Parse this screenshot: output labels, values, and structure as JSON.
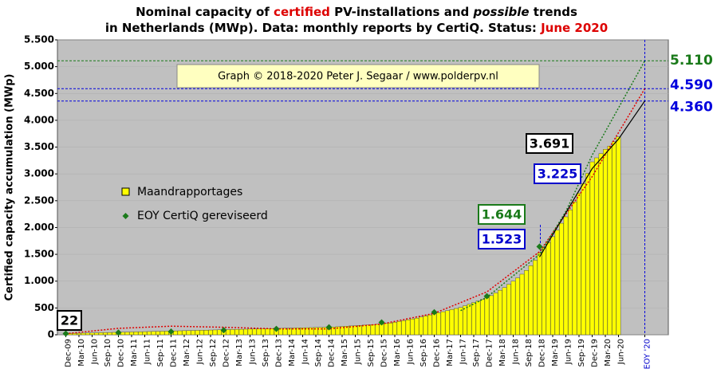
{
  "chart_data": {
    "type": "bar",
    "title_lines": [
      [
        {
          "text": "Nominal capacity of ",
          "color": "#000000"
        },
        {
          "text": "certified",
          "color": "#dd0000"
        },
        {
          "text": " PV-installations and ",
          "color": "#000000"
        },
        {
          "text": "possible",
          "color": "#000000",
          "italic": true
        },
        {
          "text": " trends",
          "color": "#000000"
        }
      ],
      [
        {
          "text": "in Netherlands (MWp). Data: monthly reports by CertiQ. Status: ",
          "color": "#000000"
        },
        {
          "text": "June 2020",
          "color": "#dd0000"
        }
      ]
    ],
    "ylabel": "Certified capacity accumulation (MWp)",
    "credit": "Graph © 2018-2020 Peter J. Segaar / www.polderpv.nl",
    "ylim": [
      0,
      5500
    ],
    "yticks": [
      0,
      500,
      {
        "value": 1000,
        "label": "1.000"
      },
      {
        "value": 1500,
        "label": "1.500"
      },
      {
        "value": 2000,
        "label": "2.000"
      },
      {
        "value": 2500,
        "label": "2.500"
      },
      {
        "value": 3000,
        "label": "3.000"
      },
      {
        "value": 3500,
        "label": "3.500"
      },
      {
        "value": 4000,
        "label": "4.000"
      },
      {
        "value": 4500,
        "label": "4.500"
      },
      {
        "value": 5000,
        "label": "5.000"
      },
      {
        "value": 5500,
        "label": "5.500"
      }
    ],
    "grid": true,
    "categories": [
      "Dec-09",
      null,
      null,
      "Mar-10",
      null,
      null,
      "Jun-10",
      null,
      null,
      "Sep-10",
      null,
      null,
      "Dec-10",
      null,
      null,
      "Mar-11",
      null,
      null,
      "Jun-11",
      null,
      null,
      "Sep-11",
      null,
      null,
      "Dec-11",
      null,
      null,
      "Mar-12",
      null,
      null,
      "Jun-12",
      null,
      null,
      "Sep-12",
      null,
      null,
      "Dec-12",
      null,
      null,
      "Mar-13",
      null,
      null,
      "Jun-13",
      null,
      null,
      "Sep-13",
      null,
      null,
      "Dec-13",
      null,
      null,
      "Mar-14",
      null,
      null,
      "Jun-14",
      null,
      null,
      "Sep-14",
      null,
      null,
      "Dec-14",
      null,
      null,
      "Mar-15",
      null,
      null,
      "Jun-15",
      null,
      null,
      "Sep-15",
      null,
      null,
      "Dec-15",
      null,
      null,
      "Mar-16",
      null,
      null,
      "Jun-16",
      null,
      null,
      "Sep-16",
      null,
      null,
      "Dec-16",
      null,
      null,
      "Mar-17",
      null,
      null,
      "Jun-17",
      null,
      null,
      "Sep-17",
      null,
      null,
      "Dec-17",
      null,
      null,
      "Mar-18",
      null,
      null,
      "Jun-18",
      null,
      null,
      "Sep-18",
      null,
      null,
      "Dec-18",
      null,
      null,
      "Mar-19",
      null,
      null,
      "Jun-19",
      null,
      null,
      "Sep-19",
      null,
      null,
      "Dec-19",
      null,
      null,
      "Mar-20",
      null,
      null,
      "Jun-20",
      null,
      null,
      null,
      null,
      null,
      "EOY '20"
    ],
    "series": [
      {
        "name": "Maandrapportages",
        "color": "#ffff00",
        "values": [
          22,
          24,
          26,
          28,
          30,
          32,
          34,
          36,
          38,
          40,
          42,
          44,
          46,
          48,
          50,
          52,
          54,
          56,
          58,
          60,
          62,
          64,
          66,
          68,
          70,
          72,
          74,
          76,
          78,
          80,
          82,
          84,
          86,
          88,
          90,
          92,
          94,
          96,
          98,
          100,
          102,
          104,
          106,
          108,
          110,
          112,
          114,
          116,
          118,
          120,
          122,
          124,
          126,
          128,
          130,
          132,
          134,
          136,
          138,
          140,
          142,
          145,
          150,
          155,
          160,
          165,
          170,
          175,
          180,
          185,
          190,
          195,
          200,
          210,
          220,
          235,
          250,
          265,
          280,
          295,
          310,
          330,
          350,
          370,
          390,
          410,
          430,
          450,
          470,
          490,
          510,
          540,
          570,
          600,
          630,
          660,
          690,
          730,
          780,
          830,
          880,
          940,
          1000,
          1060,
          1130,
          1200,
          1290,
          1390,
          1523,
          1620,
          1720,
          1830,
          1950,
          2080,
          2200,
          2330,
          2480,
          2640,
          2820,
          3010,
          3225,
          3300,
          3380,
          3460,
          3520,
          3600,
          3691,
          null,
          null,
          null,
          null,
          null,
          null
        ]
      },
      {
        "name": "EOY CertiQ gereviseerd",
        "color": "#1a7a1a",
        "values": [
          22,
          null,
          null,
          null,
          null,
          null,
          null,
          null,
          null,
          null,
          null,
          null,
          40,
          null,
          null,
          null,
          null,
          null,
          null,
          null,
          null,
          null,
          null,
          null,
          60,
          null,
          null,
          null,
          null,
          null,
          null,
          null,
          null,
          null,
          null,
          null,
          85,
          null,
          null,
          null,
          null,
          null,
          null,
          null,
          null,
          null,
          null,
          null,
          110,
          null,
          null,
          null,
          null,
          null,
          null,
          null,
          null,
          null,
          null,
          null,
          140,
          null,
          null,
          null,
          null,
          null,
          null,
          null,
          null,
          null,
          null,
          null,
          230,
          null,
          null,
          null,
          null,
          null,
          null,
          null,
          null,
          null,
          null,
          null,
          420,
          null,
          null,
          null,
          null,
          null,
          null,
          null,
          null,
          null,
          null,
          null,
          720,
          null,
          null,
          null,
          null,
          null,
          null,
          null,
          null,
          null,
          null,
          null,
          1644,
          null,
          null,
          null,
          null,
          null,
          null,
          null,
          null,
          null,
          null,
          null,
          null,
          null,
          null,
          null,
          null,
          null,
          null,
          null,
          null,
          null,
          null,
          null,
          null
        ]
      }
    ],
    "trends": [
      {
        "color": "#dd0000",
        "style": "dotted",
        "categories": [
          "Dec-09",
          "Dec-10",
          "Dec-11",
          "Dec-12",
          "Dec-13",
          "Dec-14",
          "Dec-15",
          "Dec-16",
          "Dec-17",
          "Dec-18",
          "Dec-19",
          "EOY '20"
        ],
        "values": [
          20,
          120,
          160,
          140,
          110,
          110,
          200,
          400,
          800,
          1550,
          2950,
          4590
        ]
      },
      {
        "color": "#1a7a1a",
        "style": "dotted",
        "categories": [
          "Jun-17",
          "Dec-17",
          "Dec-18",
          "Jun-19",
          "Dec-19",
          "EOY '20"
        ],
        "values": [
          450,
          700,
          1500,
          2300,
          3350,
          5110
        ]
      },
      {
        "color": "#000000",
        "style": "solid",
        "categories": [
          "Dec-18",
          "Dec-19",
          "Jun-20",
          "EOY '20"
        ],
        "values": [
          1450,
          3100,
          3650,
          4360
        ]
      }
    ],
    "reference_lines": [
      {
        "value": 5110,
        "label": "5.110",
        "color": "#1a7a1a"
      },
      {
        "value": 4590,
        "label": "4.590",
        "color": "#0000dd"
      },
      {
        "value": 4360,
        "label": "4.360",
        "color": "#0000dd"
      }
    ],
    "annotations": [
      {
        "value": 22,
        "label": "22",
        "color": "#000000"
      },
      {
        "value": 1523,
        "label": "1.523",
        "color": "#0000cc"
      },
      {
        "value": 1644,
        "label": "1.644",
        "color": "#1a7a1a"
      },
      {
        "value": 3225,
        "label": "3.225",
        "color": "#0000cc"
      },
      {
        "value": 3691,
        "label": "3.691",
        "color": "#000000"
      }
    ],
    "marker_lines": [
      "Dec-18",
      "EOY '20"
    ]
  }
}
